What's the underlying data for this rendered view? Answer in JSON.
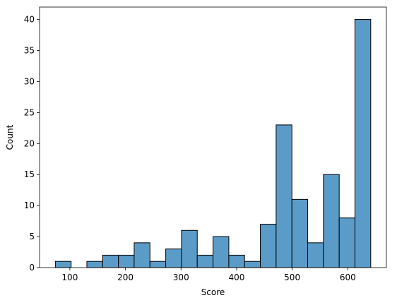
{
  "chart_data": {
    "type": "bar",
    "xlabel": "Score",
    "ylabel": "Count",
    "xlim": [
      45.5,
      669.5
    ],
    "ylim": [
      0,
      42
    ],
    "bins": [
      {
        "x0": 73.9,
        "x1": 102.3,
        "count": 1
      },
      {
        "x0": 102.3,
        "x1": 130.6,
        "count": 0
      },
      {
        "x0": 130.6,
        "x1": 159.0,
        "count": 1
      },
      {
        "x0": 159.0,
        "x1": 187.4,
        "count": 2
      },
      {
        "x0": 187.4,
        "x1": 215.7,
        "count": 2
      },
      {
        "x0": 215.7,
        "x1": 244.1,
        "count": 4
      },
      {
        "x0": 244.1,
        "x1": 272.5,
        "count": 1
      },
      {
        "x0": 272.5,
        "x1": 300.9,
        "count": 3
      },
      {
        "x0": 300.9,
        "x1": 329.2,
        "count": 6
      },
      {
        "x0": 329.2,
        "x1": 357.6,
        "count": 2
      },
      {
        "x0": 357.6,
        "x1": 386.0,
        "count": 5
      },
      {
        "x0": 386.0,
        "x1": 414.3,
        "count": 2
      },
      {
        "x0": 414.3,
        "x1": 442.7,
        "count": 1
      },
      {
        "x0": 442.7,
        "x1": 471.1,
        "count": 7
      },
      {
        "x0": 471.1,
        "x1": 499.5,
        "count": 23
      },
      {
        "x0": 499.5,
        "x1": 527.8,
        "count": 11
      },
      {
        "x0": 527.8,
        "x1": 556.2,
        "count": 4
      },
      {
        "x0": 556.2,
        "x1": 584.6,
        "count": 15
      },
      {
        "x0": 584.6,
        "x1": 612.9,
        "count": 8
      },
      {
        "x0": 612.9,
        "x1": 641.3,
        "count": 40
      }
    ],
    "xticks": [
      100,
      200,
      300,
      400,
      500,
      600
    ],
    "yticks": [
      0,
      5,
      10,
      15,
      20,
      25,
      30,
      35,
      40
    ],
    "bar_color": "#5b9bc8",
    "edge_color": "#000000",
    "grid": false
  }
}
